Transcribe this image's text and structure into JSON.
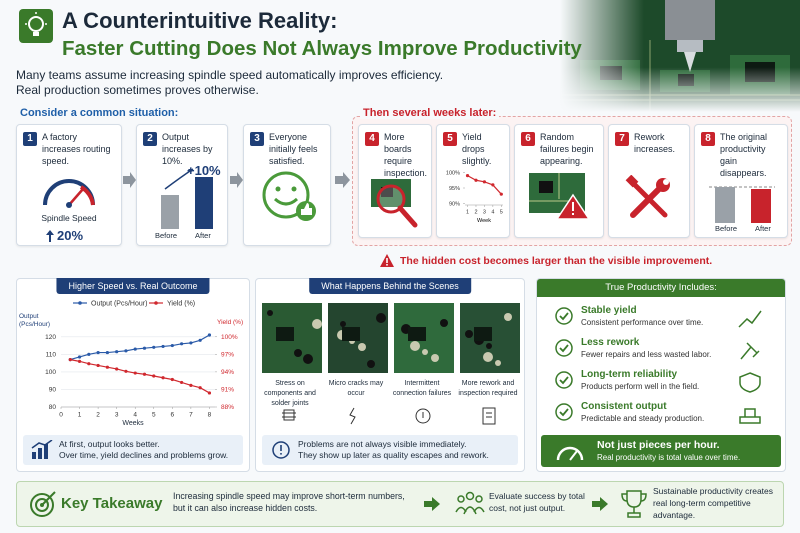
{
  "header": {
    "title": "A Counterintuitive Reality:",
    "subtitle": "Faster Cutting Does Not Always Improve Productivity",
    "intro": [
      "Many teams assume increasing spindle speed automatically improves efficiency.",
      "Real production sometimes proves otherwise."
    ]
  },
  "situation": {
    "heading": "Consider a common situation:",
    "steps": [
      {
        "number": "1",
        "text": "A factory increases routing speed.",
        "gauge_label": "Spindle Speed",
        "change": "20%"
      },
      {
        "number": "2",
        "text": "Output increases by 10%.",
        "change": "+10%",
        "bar_labels": [
          "Before",
          "After"
        ]
      },
      {
        "number": "3",
        "text": "Everyone initially feels satisfied."
      }
    ]
  },
  "later": {
    "heading": "Then several weeks later:",
    "steps": [
      {
        "number": "4",
        "text": "More boards require inspection."
      },
      {
        "number": "5",
        "text": "Yield drops slightly."
      },
      {
        "number": "6",
        "text": "Random failures begin appearing."
      },
      {
        "number": "7",
        "text": "Rework increases."
      },
      {
        "number": "8",
        "text": "The original productivity gain disappears.",
        "bar_labels": [
          "Before",
          "After"
        ]
      }
    ],
    "warning": "The hidden cost becomes larger than the visible improvement."
  },
  "chart_data": [
    {
      "type": "line",
      "title": "Higher Speed vs. Real Outcome",
      "xlabel": "Weeks",
      "ylabel": "Output (Pcs/Hour)",
      "y2label": "Yield (%)",
      "x": [
        0.5,
        1,
        1.5,
        2,
        2.5,
        3,
        3.5,
        4,
        4.5,
        5,
        5.5,
        6,
        6.5,
        7,
        7.5,
        8
      ],
      "xlim": [
        0,
        8.3
      ],
      "xticks": [
        0,
        1,
        2,
        3,
        4,
        5,
        6,
        7,
        8
      ],
      "ylim": [
        80,
        125
      ],
      "yticks": [
        80,
        90,
        100,
        110,
        120
      ],
      "y2lim": [
        88,
        101.5
      ],
      "y2ticks": [
        {
          "value": 88,
          "label": "88%"
        },
        {
          "value": 91,
          "label": "91%"
        },
        {
          "value": 94,
          "label": "94%"
        },
        {
          "value": 97,
          "label": "97%"
        },
        {
          "value": 100,
          "label": "100%"
        }
      ],
      "grid": true,
      "series": [
        {
          "name": "Output (Pcs/Hour)",
          "color": "#2a5aa8",
          "values": [
            107,
            108.5,
            110,
            111,
            111,
            111.5,
            112,
            113,
            113.5,
            114,
            114.5,
            115,
            116,
            116.5,
            118,
            121
          ]
        },
        {
          "name": "Yield (%)",
          "color": "#d0282e",
          "axis": "y2",
          "values": [
            96.1,
            95.8,
            95.4,
            95.1,
            94.8,
            94.5,
            94.1,
            93.8,
            93.6,
            93.3,
            93.0,
            92.7,
            92.2,
            91.7,
            91.3,
            90.4
          ]
        }
      ],
      "note": [
        "At first, output looks better.",
        "Over time, yield declines and problems grow."
      ]
    },
    {
      "type": "line",
      "xlabel": "Week",
      "x": [
        1,
        2,
        3,
        4,
        5
      ],
      "xlim": [
        0.7,
        5.2
      ],
      "xticks": [
        1,
        2,
        3,
        4,
        5
      ],
      "ylim": [
        89.5,
        100.5
      ],
      "yticks": [
        {
          "value": 90,
          "label": "90%"
        },
        {
          "value": 95,
          "label": "95%"
        },
        {
          "value": 100,
          "label": "100%"
        }
      ],
      "grid": false,
      "series": [
        {
          "color": "#d0282e",
          "values": [
            99,
            97.5,
            97,
            96,
            93
          ]
        }
      ]
    }
  ],
  "behind": {
    "title": "What Happens Behind the Scenes",
    "items": [
      "Stress on components and solder joints",
      "Micro cracks may occur",
      "Intermittent connection failures",
      "More rework and inspection required"
    ],
    "note": [
      "Problems are not always visible immediately.",
      "They show up later as quality escapes and rework."
    ]
  },
  "productivity": {
    "title": "True Productivity Includes:",
    "items": [
      {
        "title": "Stable yield",
        "text": "Consistent performance over time."
      },
      {
        "title": "Less rework",
        "text": "Fewer repairs and less wasted labor."
      },
      {
        "title": "Long-term reliability",
        "text": "Products perform well in the field."
      },
      {
        "title": "Consistent output",
        "text": "Predictable and steady production."
      }
    ],
    "banner": [
      "Not just pieces per hour.",
      "Real productivity is total value over time."
    ]
  },
  "takeaway": {
    "title": "Key Takeaway",
    "text": "Increasing spindle speed may improve short-term numbers, but it can also increase hidden costs.",
    "evaluate": "Evaluate success by total cost, not just output.",
    "result": "Sustainable productivity creates real long-term competitive advantage."
  }
}
